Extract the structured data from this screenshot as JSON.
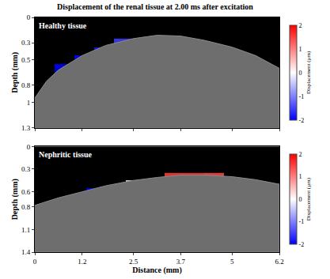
{
  "chart_data": {
    "type": "heatmap",
    "title": "Displacement of the renal tissue at 2.00 ms after excitation",
    "xlabel": "Distance (mm)",
    "ylabel": "Depth (mm)",
    "xlim": [
      0,
      6.2
    ],
    "xticks": [
      0,
      1.2,
      2.5,
      3.7,
      5,
      6.2
    ],
    "colorbar": {
      "title": "Displacement (µm)",
      "range": [
        -2,
        2
      ],
      "ticks": [
        -2,
        -1,
        0,
        1,
        2
      ]
    },
    "panels": [
      {
        "label": "Healthy tissue",
        "ylim": [
          1.3,
          0
        ],
        "yticks": [
          0,
          0.3,
          0.5,
          0.8,
          1,
          1.3
        ],
        "surface": {
          "x": [
            0,
            0.3,
            0.6,
            1.2,
            1.8,
            2.5,
            3.1,
            3.7,
            4.3,
            5,
            5.6,
            6.2
          ],
          "depth": [
            0.95,
            0.75,
            0.62,
            0.45,
            0.33,
            0.25,
            0.21,
            0.22,
            0.27,
            0.35,
            0.45,
            0.6
          ]
        },
        "x": [
          0.75,
          1.25,
          1.75,
          2.25,
          2.75,
          3.25,
          3.75,
          4.25,
          4.75
        ],
        "y": [
          0.3,
          0.4,
          0.5,
          0.6,
          0.7,
          0.8,
          0.9
        ],
        "z": [
          [
            null,
            null,
            null,
            -1.5,
            -0.8,
            0.3,
            1.0,
            null,
            null
          ],
          [
            null,
            null,
            -1.8,
            -1.5,
            -0.7,
            0.4,
            1.1,
            1.2,
            1.1
          ],
          [
            null,
            -2.0,
            -1.8,
            -1.4,
            -0.7,
            0.3,
            1.0,
            1.2,
            1.2
          ],
          [
            -2.0,
            -2.0,
            -1.7,
            -1.4,
            -0.6,
            0.3,
            1.0,
            1.1,
            1.1
          ],
          [
            -2.0,
            -1.9,
            -1.7,
            -1.3,
            -0.6,
            0.2,
            0.9,
            1.0,
            1.0
          ],
          [
            -1.9,
            -1.9,
            -1.6,
            null,
            null,
            null,
            null,
            null,
            null
          ],
          [
            -1.9,
            -1.8,
            null,
            null,
            null,
            null,
            null,
            null,
            null
          ]
        ]
      },
      {
        "label": "Nephritic tissue",
        "ylim": [
          1.4,
          0
        ],
        "yticks": [
          0,
          0.3,
          0.6,
          0.8,
          1.1,
          1.4
        ],
        "surface": {
          "x": [
            0,
            0.6,
            1.2,
            1.8,
            2.5,
            3.1,
            3.7,
            4.3,
            5,
            5.6,
            6.2
          ],
          "depth": [
            0.78,
            0.68,
            0.6,
            0.52,
            0.45,
            0.41,
            0.38,
            0.38,
            0.4,
            0.44,
            0.5
          ]
        },
        "x": [
          1.05,
          1.55,
          2.05,
          2.55,
          3.05,
          3.55,
          4.05,
          4.55,
          5.05
        ],
        "y": [
          0.4,
          0.5,
          0.6,
          0.7,
          0.8,
          0.9,
          1.0
        ],
        "z": [
          [
            null,
            null,
            null,
            null,
            null,
            1.5,
            1.5,
            1.4,
            null
          ],
          [
            null,
            null,
            null,
            0.2,
            1.3,
            1.6,
            1.5,
            1.4,
            1.3
          ],
          [
            null,
            -2.0,
            -1.8,
            0.2,
            1.3,
            1.5,
            1.5,
            1.4,
            1.3
          ],
          [
            -2.0,
            -2.0,
            -1.8,
            0.1,
            1.2,
            1.5,
            1.4,
            1.3,
            1.2
          ],
          [
            -2.0,
            -2.0,
            -1.7,
            0.1,
            1.2,
            null,
            null,
            null,
            null
          ],
          [
            -2.0,
            -1.9,
            -1.7,
            null,
            null,
            null,
            null,
            null,
            null
          ],
          [
            -1.9,
            null,
            null,
            null,
            null,
            null,
            null,
            null,
            null
          ]
        ]
      }
    ]
  }
}
